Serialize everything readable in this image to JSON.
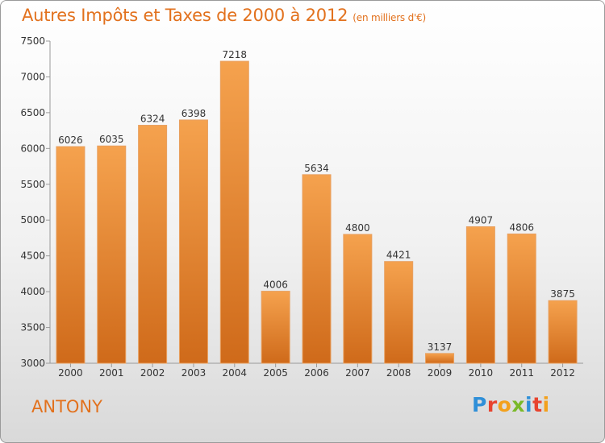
{
  "chart_data": {
    "type": "bar",
    "title": "Autres Impôts et Taxes de 2000 à 2012",
    "subtitle": "(en milliers d'€)",
    "categories": [
      "2000",
      "2001",
      "2002",
      "2003",
      "2004",
      "2005",
      "2006",
      "2007",
      "2008",
      "2009",
      "2010",
      "2011",
      "2012"
    ],
    "values": [
      6026,
      6035,
      6324,
      6398,
      7218,
      4006,
      5634,
      4800,
      4421,
      3137,
      4907,
      4806,
      3875
    ],
    "ylim": [
      3000,
      7500
    ],
    "yticks": [
      3000,
      3500,
      4000,
      4500,
      5000,
      5500,
      6000,
      6500,
      7000,
      7500
    ],
    "grid": false,
    "bar_color": "#f0913a",
    "bar_color_dark": "#d06a1a"
  },
  "footer": {
    "city": "ANTONY",
    "logo": "Proxiti"
  },
  "colors": {
    "accent": "#e2711d",
    "logo_letters": [
      "#2f8fd8",
      "#e8432e",
      "#f3a11d",
      "#7ab929",
      "#2f8fd8",
      "#e8432e",
      "#f3a11d"
    ]
  }
}
